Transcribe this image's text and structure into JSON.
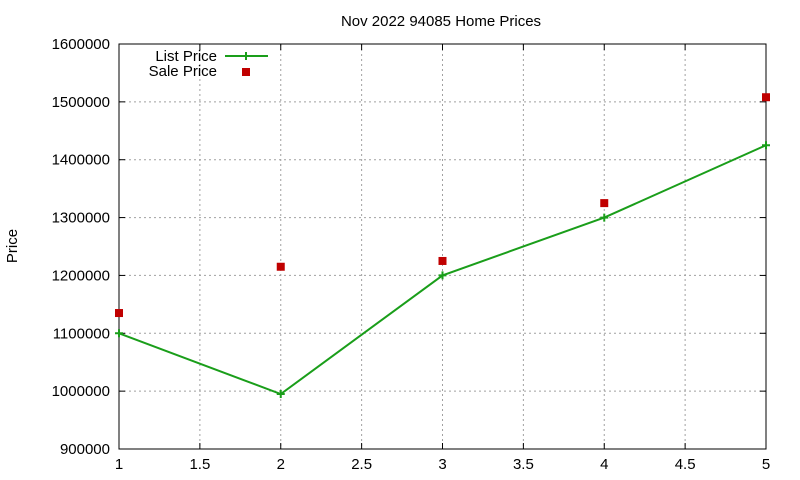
{
  "chart_data": {
    "type": "line",
    "title": "Nov 2022 94085 Home Prices",
    "xlabel": "",
    "ylabel": "Price",
    "xlim": [
      1,
      5
    ],
    "ylim": [
      900000,
      1600000
    ],
    "xticks": [
      "1",
      "1.5",
      "2",
      "2.5",
      "3",
      "3.5",
      "4",
      "4.5",
      "5"
    ],
    "xtick_values": [
      1,
      1.5,
      2,
      2.5,
      3,
      3.5,
      4,
      4.5,
      5
    ],
    "yticks": [
      "900000",
      "1000000",
      "1100000",
      "1200000",
      "1300000",
      "1400000",
      "1500000",
      "1600000"
    ],
    "ytick_values": [
      900000,
      1000000,
      1100000,
      1200000,
      1300000,
      1400000,
      1500000,
      1600000
    ],
    "grid": true,
    "legend_position": "top-left",
    "series": [
      {
        "name": "List Price",
        "style": "line-with-plus-markers",
        "color": "#1a9e1a",
        "x": [
          1,
          2,
          3,
          4,
          5
        ],
        "y": [
          1100000,
          995000,
          1200000,
          1300000,
          1425000
        ]
      },
      {
        "name": "Sale Price",
        "style": "square-markers",
        "color": "#c00000",
        "x": [
          1,
          2,
          3,
          4,
          5
        ],
        "y": [
          1135000,
          1215000,
          1225000,
          1325000,
          1508000
        ]
      }
    ]
  }
}
